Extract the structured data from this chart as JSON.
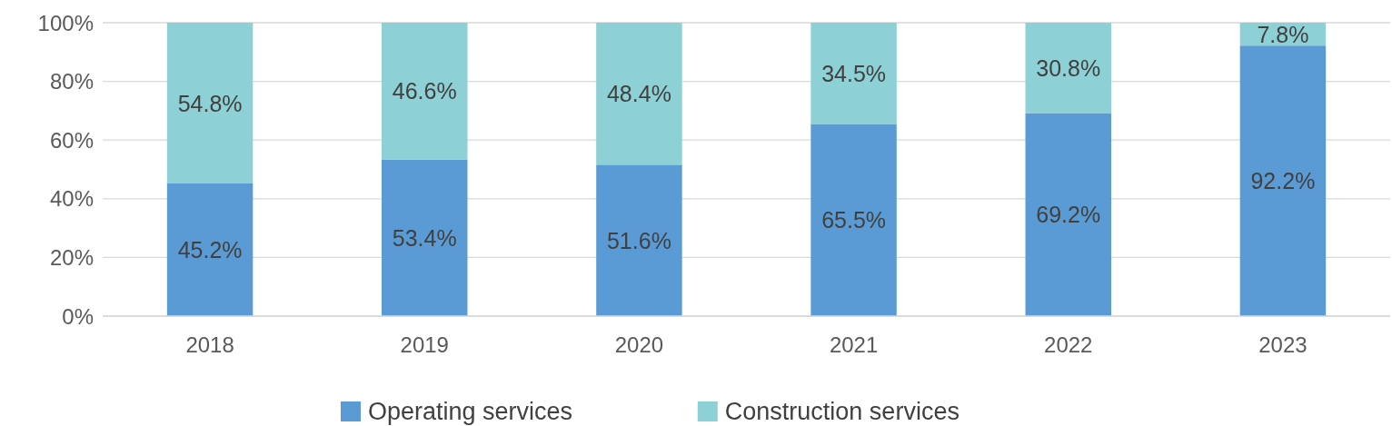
{
  "chart_data": {
    "type": "bar",
    "stacked": true,
    "categories": [
      "2018",
      "2019",
      "2020",
      "2021",
      "2022",
      "2023"
    ],
    "series": [
      {
        "name": "Operating services",
        "color": "#5b9bd5",
        "values": [
          45.2,
          53.4,
          51.6,
          65.5,
          69.2,
          92.2
        ],
        "value_labels": [
          "45.2%",
          "53.4%",
          "51.6%",
          "65.5%",
          "69.2%",
          "92.2%"
        ]
      },
      {
        "name": "Construction services",
        "color": "#8dd0d5",
        "values": [
          54.8,
          46.6,
          48.4,
          34.5,
          30.8,
          7.8
        ],
        "value_labels": [
          "54.8%",
          "46.6%",
          "48.4%",
          "34.5%",
          "30.8%",
          "7.8%"
        ]
      }
    ],
    "ylim": [
      0,
      100
    ],
    "yticks": [
      {
        "value": 0,
        "label": "0%"
      },
      {
        "value": 20,
        "label": "20%"
      },
      {
        "value": 40,
        "label": "40%"
      },
      {
        "value": 60,
        "label": "60%"
      },
      {
        "value": 80,
        "label": "80%"
      },
      {
        "value": 100,
        "label": "100%"
      }
    ],
    "grid": "y",
    "legend": "bottom"
  }
}
